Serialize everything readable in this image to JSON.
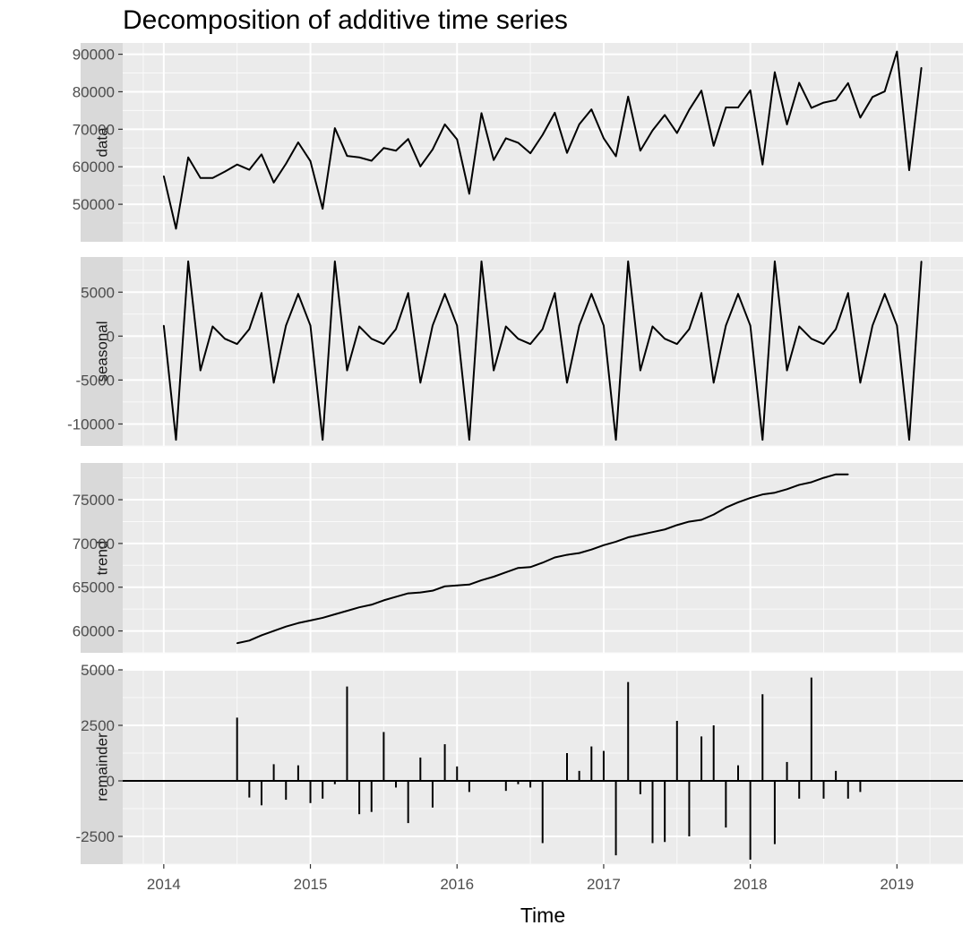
{
  "chart_data": {
    "type": "line",
    "title": "Decomposition of additive time series",
    "xlabel": "Time",
    "x_axis": {
      "ticks": [
        2014,
        2015,
        2016,
        2017,
        2018,
        2019
      ],
      "tick_labels": [
        "2014",
        "2015",
        "2016",
        "2017",
        "2018",
        "2019"
      ],
      "range": [
        2013.72,
        2019.45
      ]
    },
    "time_series": {
      "start": 2014.0,
      "frequency": 12,
      "length": 63
    },
    "panels": [
      {
        "name": "data",
        "style": "line",
        "ylim": [
          40000,
          93000
        ],
        "ticks": [
          50000,
          60000,
          70000,
          80000,
          90000
        ],
        "tick_labels": [
          "50000",
          "60000",
          "70000",
          "80000",
          "90000"
        ],
        "values": [
          57500,
          43500,
          62500,
          57000,
          57000,
          58700,
          60600,
          59200,
          63300,
          55800,
          60800,
          66500,
          61500,
          48800,
          70300,
          62900,
          62500,
          61600,
          65000,
          64300,
          67400,
          60100,
          64600,
          71300,
          67300,
          52800,
          74300,
          61800,
          67600,
          66400,
          63600,
          68500,
          74400,
          63700,
          71300,
          75300,
          67600,
          62800,
          78700,
          64300,
          69700,
          73800,
          69000,
          75200,
          80300,
          65600,
          75800,
          75800,
          80400,
          60600,
          85200,
          71300,
          82400,
          75700,
          77100,
          77800,
          82300,
          73100,
          78600,
          80100,
          90700,
          59100,
          86400
        ]
      },
      {
        "name": "seasonal",
        "style": "line",
        "ylim": [
          -12500,
          9000
        ],
        "ticks": [
          -10000,
          -5000,
          0,
          5000
        ],
        "tick_labels": [
          "-10000",
          "-5000",
          "0",
          "5000"
        ],
        "values": [
          1200,
          -11800,
          8500,
          -3900,
          1100,
          -300,
          -900,
          800,
          4900,
          -5300,
          1200,
          4800,
          1200,
          -11800,
          8500,
          -3900,
          1100,
          -300,
          -900,
          800,
          4900,
          -5300,
          1200,
          4800,
          1200,
          -11800,
          8500,
          -3900,
          1100,
          -300,
          -900,
          800,
          4900,
          -5300,
          1200,
          4800,
          1200,
          -11800,
          8500,
          -3900,
          1100,
          -300,
          -900,
          800,
          4900,
          -5300,
          1200,
          4800,
          1200,
          -11800,
          8500,
          -3900,
          1100,
          -300,
          -900,
          800,
          4900,
          -5300,
          1200,
          4800,
          1200,
          -11800,
          8500
        ]
      },
      {
        "name": "trend",
        "style": "line",
        "ylim": [
          57500,
          79200
        ],
        "ticks": [
          60000,
          65000,
          70000,
          75000
        ],
        "tick_labels": [
          "60000",
          "65000",
          "70000",
          "75000"
        ],
        "values": [
          null,
          null,
          null,
          null,
          null,
          null,
          58600,
          58900,
          59500,
          60000,
          60500,
          60900,
          61200,
          61500,
          61900,
          62300,
          62700,
          63000,
          63500,
          63900,
          64300,
          64400,
          64600,
          65100,
          65200,
          65300,
          65800,
          66200,
          66700,
          67200,
          67300,
          67800,
          68400,
          68700,
          68900,
          69300,
          69800,
          70200,
          70700,
          71000,
          71300,
          71600,
          72100,
          72500,
          72700,
          73300,
          74100,
          74700,
          75200,
          75600,
          75800,
          76200,
          76700,
          77000,
          77500,
          77900,
          77900,
          null,
          null,
          null,
          null,
          null,
          null
        ]
      },
      {
        "name": "remainder",
        "style": "spikes",
        "ylim": [
          -3750,
          5000
        ],
        "ticks": [
          -2500,
          0,
          2500,
          5000
        ],
        "tick_labels": [
          "-2500",
          "0",
          "2500",
          "5000"
        ],
        "values": [
          null,
          null,
          null,
          null,
          null,
          null,
          2850,
          -750,
          -1100,
          750,
          -850,
          700,
          -1000,
          -800,
          -150,
          4250,
          -1500,
          -1400,
          2200,
          -300,
          -1900,
          1050,
          -1200,
          1650,
          650,
          -500,
          0,
          0,
          -450,
          -150,
          -300,
          -2800,
          0,
          1250,
          450,
          1550,
          1350,
          -3350,
          4450,
          -600,
          -2800,
          -2750,
          2700,
          -2500,
          2000,
          2500,
          -2100,
          700,
          -3550,
          3900,
          -2850,
          850,
          -800,
          4650,
          -800,
          450,
          -800,
          -500,
          null,
          null,
          null,
          null,
          null
        ]
      }
    ]
  }
}
